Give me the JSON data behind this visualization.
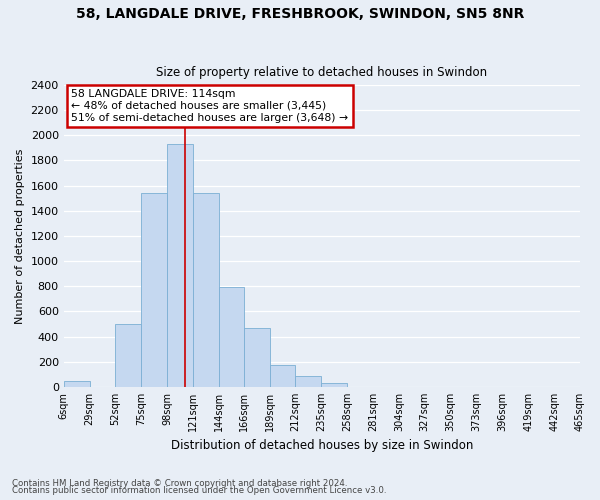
{
  "title1": "58, LANGDALE DRIVE, FRESHBROOK, SWINDON, SN5 8NR",
  "title2": "Size of property relative to detached houses in Swindon",
  "xlabel": "Distribution of detached houses by size in Swindon",
  "ylabel": "Number of detached properties",
  "bin_labels": [
    "6sqm",
    "29sqm",
    "52sqm",
    "75sqm",
    "98sqm",
    "121sqm",
    "144sqm",
    "166sqm",
    "189sqm",
    "212sqm",
    "235sqm",
    "258sqm",
    "281sqm",
    "304sqm",
    "327sqm",
    "350sqm",
    "373sqm",
    "396sqm",
    "419sqm",
    "442sqm",
    "465sqm"
  ],
  "bin_edges": [
    6,
    29,
    52,
    75,
    98,
    121,
    144,
    166,
    189,
    212,
    235,
    258,
    281,
    304,
    327,
    350,
    373,
    396,
    419,
    442,
    465
  ],
  "bar_heights": [
    50,
    0,
    500,
    1540,
    1930,
    1540,
    790,
    470,
    175,
    90,
    30,
    0,
    0,
    0,
    0,
    0,
    0,
    0,
    0,
    0
  ],
  "bar_color": "#c5d8f0",
  "bar_edge_color": "#7bafd4",
  "property_value": 114,
  "vline_color": "#cc0000",
  "ylim": [
    0,
    2400
  ],
  "yticks": [
    0,
    200,
    400,
    600,
    800,
    1000,
    1200,
    1400,
    1600,
    1800,
    2000,
    2200,
    2400
  ],
  "annotation_title": "58 LANGDALE DRIVE: 114sqm",
  "annotation_line1": "← 48% of detached houses are smaller (3,445)",
  "annotation_line2": "51% of semi-detached houses are larger (3,648) →",
  "annotation_box_color": "#ffffff",
  "annotation_box_edge": "#cc0000",
  "footer1": "Contains HM Land Registry data © Crown copyright and database right 2024.",
  "footer2": "Contains public sector information licensed under the Open Government Licence v3.0.",
  "background_color": "#e8eef6"
}
